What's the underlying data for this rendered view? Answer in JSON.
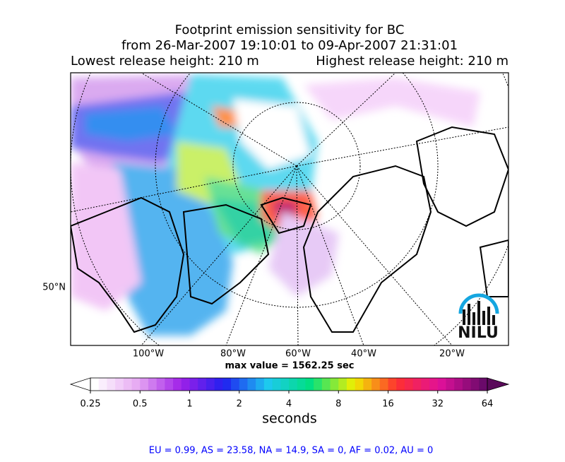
{
  "title": {
    "line1": "Footprint emission sensitivity for BC",
    "line2": "from 26-Mar-2007 19:10:01 to 09-Apr-2007 21:31:01",
    "lowest": "Lowest release height: 210 m",
    "highest": "Highest release height: 210 m"
  },
  "map": {
    "lat_labels": [
      "50°N"
    ],
    "lon_labels": [
      "100°W",
      "80°W",
      "60°W",
      "40°W",
      "20°W"
    ],
    "max_value": "max value = 1562.25 sec",
    "logo": "NILU"
  },
  "colorbar": {
    "ticks": [
      "0.25",
      "0.5",
      "1",
      "2",
      "4",
      "8",
      "16",
      "32",
      "64"
    ],
    "label": "seconds"
  },
  "footer": "EU = 0.99,  AS = 23.58,  NA = 14.9,  SA = 0,  AF = 0.02,  AU = 0"
}
